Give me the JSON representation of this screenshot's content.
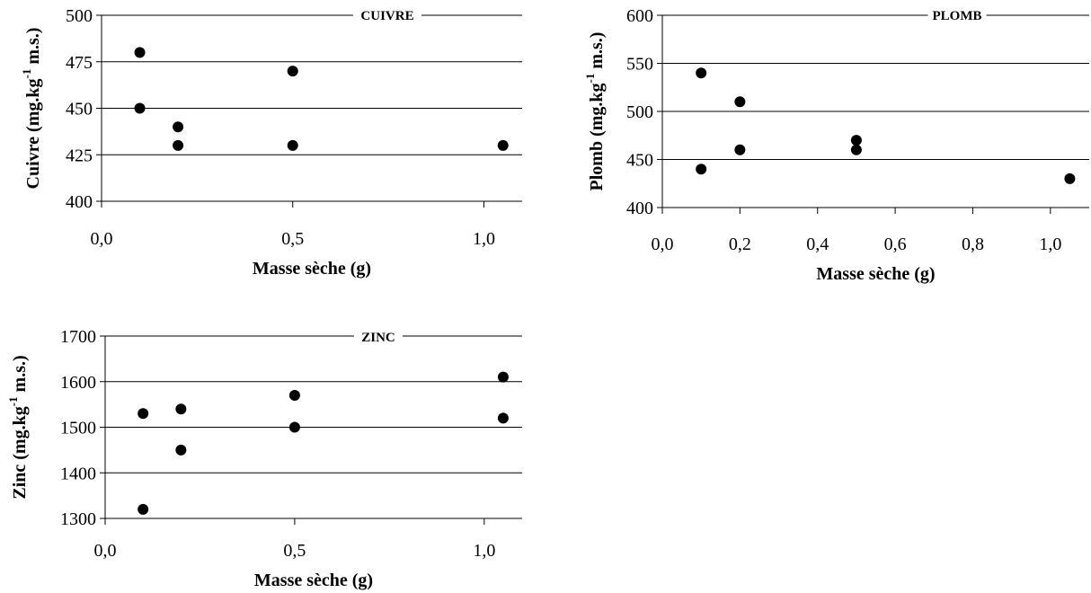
{
  "chart_data": [
    {
      "type": "scatter",
      "title": "CUIVRE",
      "xlabel": "Masse sèche (g)",
      "ylabel": {
        "prefix": "Cuivre (mg.kg",
        "sup": "-1",
        "suffix": " m.s.)"
      },
      "xlim": [
        0,
        1.1
      ],
      "ylim": [
        400,
        500
      ],
      "xticks": [
        {
          "value": 0,
          "label": "0,0"
        },
        {
          "value": 0.5,
          "label": "0,5"
        },
        {
          "value": 1.0,
          "label": "1,0"
        }
      ],
      "yticks": [
        {
          "value": 400,
          "label": "400"
        },
        {
          "value": 425,
          "label": "425"
        },
        {
          "value": 450,
          "label": "450"
        },
        {
          "value": 475,
          "label": "475"
        },
        {
          "value": 500,
          "label": "500"
        }
      ],
      "grid": true,
      "points": [
        {
          "x": 0.1,
          "y": 480
        },
        {
          "x": 0.1,
          "y": 450
        },
        {
          "x": 0.2,
          "y": 440
        },
        {
          "x": 0.2,
          "y": 430
        },
        {
          "x": 0.5,
          "y": 470
        },
        {
          "x": 0.5,
          "y": 430
        },
        {
          "x": 1.05,
          "y": 430
        }
      ]
    },
    {
      "type": "scatter",
      "title": "PLOMB",
      "xlabel": "Masse sèche (g)",
      "ylabel": {
        "prefix": "Plomb (mg.kg",
        "sup": "-1",
        "suffix": " m.s.)"
      },
      "xlim": [
        0,
        1.1
      ],
      "ylim": [
        400,
        600
      ],
      "xticks": [
        {
          "value": 0,
          "label": "0,0"
        },
        {
          "value": 0.2,
          "label": "0,2"
        },
        {
          "value": 0.4,
          "label": "0,4"
        },
        {
          "value": 0.6,
          "label": "0,6"
        },
        {
          "value": 0.8,
          "label": "0,8"
        },
        {
          "value": 1.0,
          "label": "1,0"
        }
      ],
      "yticks": [
        {
          "value": 400,
          "label": "400"
        },
        {
          "value": 450,
          "label": "450"
        },
        {
          "value": 500,
          "label": "500"
        },
        {
          "value": 550,
          "label": "550"
        },
        {
          "value": 600,
          "label": "600"
        }
      ],
      "grid": true,
      "points": [
        {
          "x": 0.1,
          "y": 540
        },
        {
          "x": 0.1,
          "y": 440
        },
        {
          "x": 0.2,
          "y": 510
        },
        {
          "x": 0.2,
          "y": 460
        },
        {
          "x": 0.5,
          "y": 470
        },
        {
          "x": 0.5,
          "y": 460
        },
        {
          "x": 1.05,
          "y": 430
        }
      ]
    },
    {
      "type": "scatter",
      "title": "ZINC",
      "xlabel": "Masse sèche (g)",
      "ylabel": {
        "prefix": "Zinc (mg.kg",
        "sup": "-1",
        "suffix": " m.s.)"
      },
      "xlim": [
        0,
        1.1
      ],
      "ylim": [
        1300,
        1700
      ],
      "xticks": [
        {
          "value": 0,
          "label": "0,0"
        },
        {
          "value": 0.5,
          "label": "0,5"
        },
        {
          "value": 1.0,
          "label": "1,0"
        }
      ],
      "yticks": [
        {
          "value": 1300,
          "label": "1300"
        },
        {
          "value": 1400,
          "label": "1400"
        },
        {
          "value": 1500,
          "label": "1500"
        },
        {
          "value": 1600,
          "label": "1600"
        },
        {
          "value": 1700,
          "label": "1700"
        }
      ],
      "grid": true,
      "points": [
        {
          "x": 0.1,
          "y": 1530
        },
        {
          "x": 0.1,
          "y": 1320
        },
        {
          "x": 0.2,
          "y": 1540
        },
        {
          "x": 0.2,
          "y": 1450
        },
        {
          "x": 0.5,
          "y": 1570
        },
        {
          "x": 0.5,
          "y": 1500
        },
        {
          "x": 1.05,
          "y": 1610
        },
        {
          "x": 1.05,
          "y": 1520
        }
      ]
    }
  ]
}
